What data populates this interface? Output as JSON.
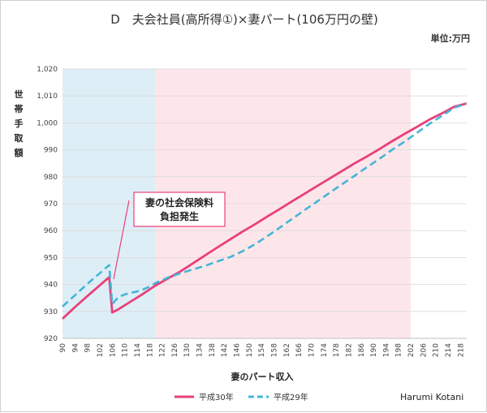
{
  "chart_data": {
    "type": "line",
    "title": "D　夫会社員(高所得①)×妻パート(106万円の壁)",
    "unit_label": "単位:万円",
    "ylabel": "世帯手取額",
    "xlabel": "妻のパート収入",
    "credit": "Harumi Kotani",
    "annotation": [
      "妻の社会保険料",
      "負担発生"
    ],
    "xlim": [
      90,
      220
    ],
    "ylim": [
      920,
      1020
    ],
    "y_ticks": [
      920,
      930,
      940,
      950,
      960,
      970,
      980,
      990,
      1000,
      1010,
      1020
    ],
    "x_ticks": [
      90,
      94,
      98,
      102,
      106,
      110,
      114,
      118,
      122,
      126,
      130,
      134,
      138,
      142,
      146,
      150,
      154,
      158,
      162,
      166,
      170,
      174,
      178,
      182,
      186,
      190,
      194,
      198,
      202,
      206,
      210,
      214,
      218
    ],
    "y_tick_labels": [
      "920",
      "930",
      "940",
      "950",
      "960",
      "970",
      "980",
      "990",
      "1,000",
      "1,010",
      "1,020"
    ],
    "regions": [
      {
        "x0": 90,
        "x1": 120,
        "color": "#deeef6"
      },
      {
        "x0": 120,
        "x1": 202,
        "color": "#fde6ea"
      }
    ],
    "series": [
      {
        "name": "平成30年",
        "color": "#e8407a",
        "dash": "solid",
        "x": [
          90,
          94,
          98,
          102,
          105,
          106,
          108,
          112,
          116,
          120,
          124,
          128,
          132,
          136,
          140,
          144,
          148,
          152,
          156,
          160,
          164,
          168,
          172,
          176,
          180,
          184,
          188,
          192,
          196,
          200,
          204,
          208,
          212,
          216,
          220
        ],
        "y": [
          927.3,
          931.6,
          935.7,
          939.7,
          942.7,
          929.6,
          930.8,
          933.7,
          936.6,
          939.7,
          942.3,
          944.9,
          947.9,
          950.9,
          953.9,
          956.8,
          959.7,
          962.4,
          965.3,
          968.1,
          971.0,
          973.8,
          976.6,
          979.4,
          982.2,
          985.0,
          987.6,
          990.3,
          993.2,
          995.9,
          998.5,
          1001.2,
          1003.5,
          1006.0,
          1007.2
        ]
      },
      {
        "name": "平成29年",
        "color": "#45b5d8",
        "dash": "dashed",
        "x": [
          90,
          94,
          98,
          102,
          105,
          106,
          108,
          110,
          112,
          114,
          116,
          118,
          120,
          124,
          128,
          132,
          136,
          140,
          144,
          148,
          152,
          156,
          160,
          164,
          168,
          172,
          176,
          180,
          184,
          188,
          192,
          196,
          200,
          204,
          208,
          212,
          216,
          220
        ],
        "y": [
          931.8,
          936.0,
          940.2,
          944.2,
          947.2,
          932.7,
          935.4,
          936.3,
          936.9,
          937.4,
          938.2,
          939.2,
          940.6,
          942.6,
          944.2,
          945.6,
          947.0,
          948.6,
          950.2,
          952.4,
          955.0,
          958.0,
          961.2,
          964.5,
          967.7,
          970.9,
          974.1,
          977.3,
          980.4,
          983.6,
          986.7,
          990.0,
          993.0,
          996.3,
          999.6,
          1002.6,
          1005.6,
          1007.2
        ]
      }
    ]
  }
}
